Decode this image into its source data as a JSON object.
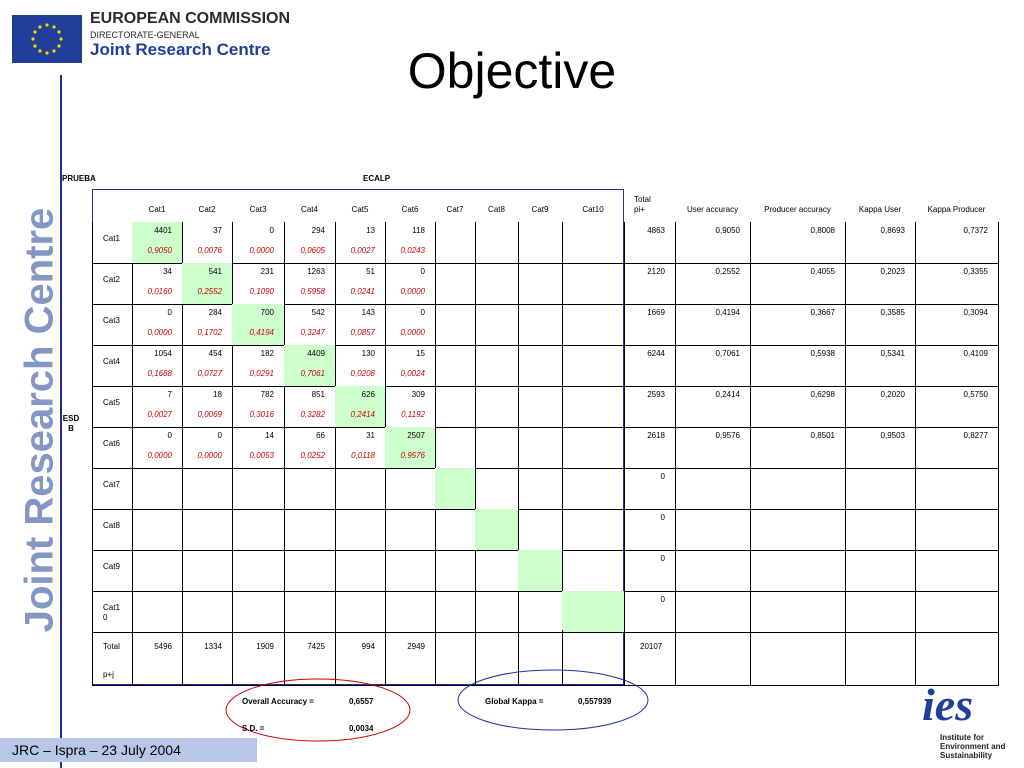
{
  "header": {
    "org": [
      "EUROPEAN COMMISSION",
      "DIRECTORATE-GENERAL",
      "Joint Research Centre"
    ],
    "title": "Objective"
  },
  "side_text": "Joint Research Centre",
  "table": {
    "row_axis_label": "PRUEBA",
    "column_axis_label": "ECALP",
    "row_group_label": "ESD B",
    "columns": [
      "Cat1",
      "Cat2",
      "Cat3",
      "Cat4",
      "Cat5",
      "Cat6",
      "Cat7",
      "Cat8",
      "Cat9",
      "Cat10",
      "Total pi+",
      "User accuracy",
      "Producer accuracy",
      "Kappa User",
      "Kappa Producer"
    ],
    "rows": [
      {
        "name": "Cat1",
        "counts": [
          4401,
          37,
          0,
          294,
          13,
          118
        ],
        "proportions": [
          "0,9050",
          "0,0076",
          "0,0000",
          "0,0605",
          "0,0027",
          "0,0243"
        ],
        "total": 4863,
        "user_accuracy": "0,9050",
        "producer_accuracy": "0,8008",
        "kappa_user": "0,8693",
        "kappa_producer": "0,7372"
      },
      {
        "name": "Cat2",
        "counts": [
          34,
          541,
          231,
          1263,
          51,
          0
        ],
        "proportions": [
          "0,0160",
          "0,2552",
          "0,1090",
          "0,5958",
          "0,0241",
          "0,0000"
        ],
        "total": 2120,
        "user_accuracy": "0,2552",
        "producer_accuracy": "0,4055",
        "kappa_user": "0,2023",
        "kappa_producer": "0,3355"
      },
      {
        "name": "Cat3",
        "counts": [
          0,
          284,
          700,
          542,
          143,
          0
        ],
        "proportions": [
          "0,0000",
          "0,1702",
          "0,4194",
          "0,3247",
          "0,0857",
          "0,0000"
        ],
        "total": 1669,
        "user_accuracy": "0,4194",
        "producer_accuracy": "0,3667",
        "kappa_user": "0,3585",
        "kappa_producer": "0,3094"
      },
      {
        "name": "Cat4",
        "counts": [
          1054,
          454,
          182,
          4409,
          130,
          15
        ],
        "proportions": [
          "0,1688",
          "0,0727",
          "0,0291",
          "0,7061",
          "0,0208",
          "0,0024"
        ],
        "total": 6244,
        "user_accuracy": "0,7061",
        "producer_accuracy": "0,5938",
        "kappa_user": "0,5341",
        "kappa_producer": "0,4109"
      },
      {
        "name": "Cat5",
        "counts": [
          7,
          18,
          782,
          851,
          626,
          309
        ],
        "proportions": [
          "0,0027",
          "0,0069",
          "0,3016",
          "0,3282",
          "0,2414",
          "0,1192"
        ],
        "total": 2593,
        "user_accuracy": "0,2414",
        "producer_accuracy": "0,6298",
        "kappa_user": "0,2020",
        "kappa_producer": "0,5750"
      },
      {
        "name": "Cat6",
        "counts": [
          0,
          0,
          14,
          66,
          31,
          2507
        ],
        "proportions": [
          "0,0000",
          "0,0000",
          "0,0053",
          "0,0252",
          "0,0118",
          "0,9576"
        ],
        "total": 2618,
        "user_accuracy": "0,9576",
        "producer_accuracy": "0,8501",
        "kappa_user": "0,9503",
        "kappa_producer": "0,8277"
      },
      {
        "name": "Cat7",
        "total": 0
      },
      {
        "name": "Cat8",
        "total": 0
      },
      {
        "name": "Cat9",
        "total": 0
      },
      {
        "name": "Cat10",
        "total": 0
      }
    ],
    "total_row": {
      "name": "Total",
      "sub": "p+j",
      "counts": [
        5496,
        1334,
        1909,
        7425,
        994,
        2949
      ],
      "total": 20107
    }
  },
  "summary": {
    "overall_accuracy_label": "Overall Accuracy =",
    "overall_accuracy": "0,6557",
    "sd_label": "S.D. =",
    "sd": "0,0034",
    "global_kappa_label": "Global Kappa =",
    "global_kappa": "0,557939"
  },
  "logo": {
    "mark": "ies",
    "caption": "Institute for Environment and Sustainability"
  },
  "footer": "JRC – Ispra – 23 July 2004"
}
